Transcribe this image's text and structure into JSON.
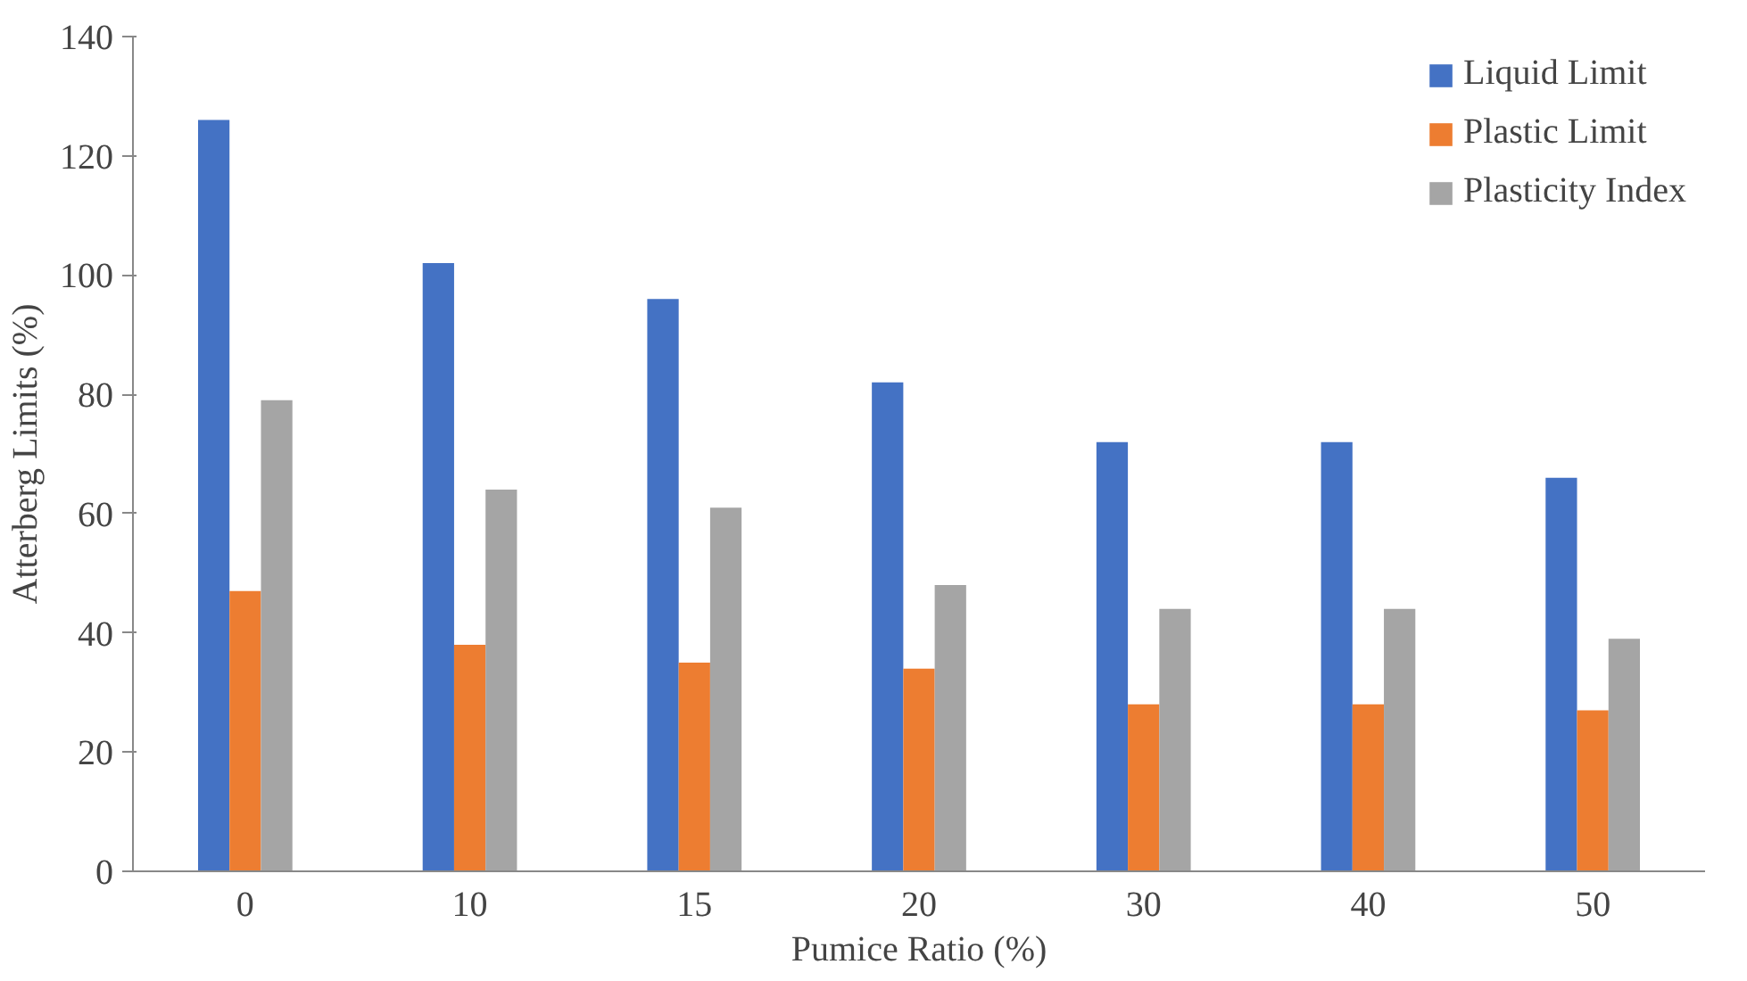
{
  "chart_data": {
    "type": "bar",
    "xlabel": "Pumice Ratio (%)",
    "ylabel": "Atterberg Limits (%)",
    "categories": [
      "0",
      "10",
      "15",
      "20",
      "30",
      "40",
      "50"
    ],
    "series": [
      {
        "name": "Liquid Limit",
        "color": "#4472c4",
        "values": [
          126,
          102,
          96,
          82,
          72,
          72,
          66
        ]
      },
      {
        "name": "Plastic Limit",
        "color": "#ed7d31",
        "values": [
          47,
          38,
          35,
          34,
          28,
          28,
          27
        ]
      },
      {
        "name": "Plasticity Index",
        "color": "#a5a5a5",
        "values": [
          79,
          64,
          61,
          48,
          44,
          44,
          39
        ]
      }
    ],
    "ylim": [
      0,
      140
    ],
    "yticks": [
      0,
      20,
      40,
      60,
      80,
      100,
      120,
      140
    ],
    "grid": false,
    "legend": "top right"
  }
}
